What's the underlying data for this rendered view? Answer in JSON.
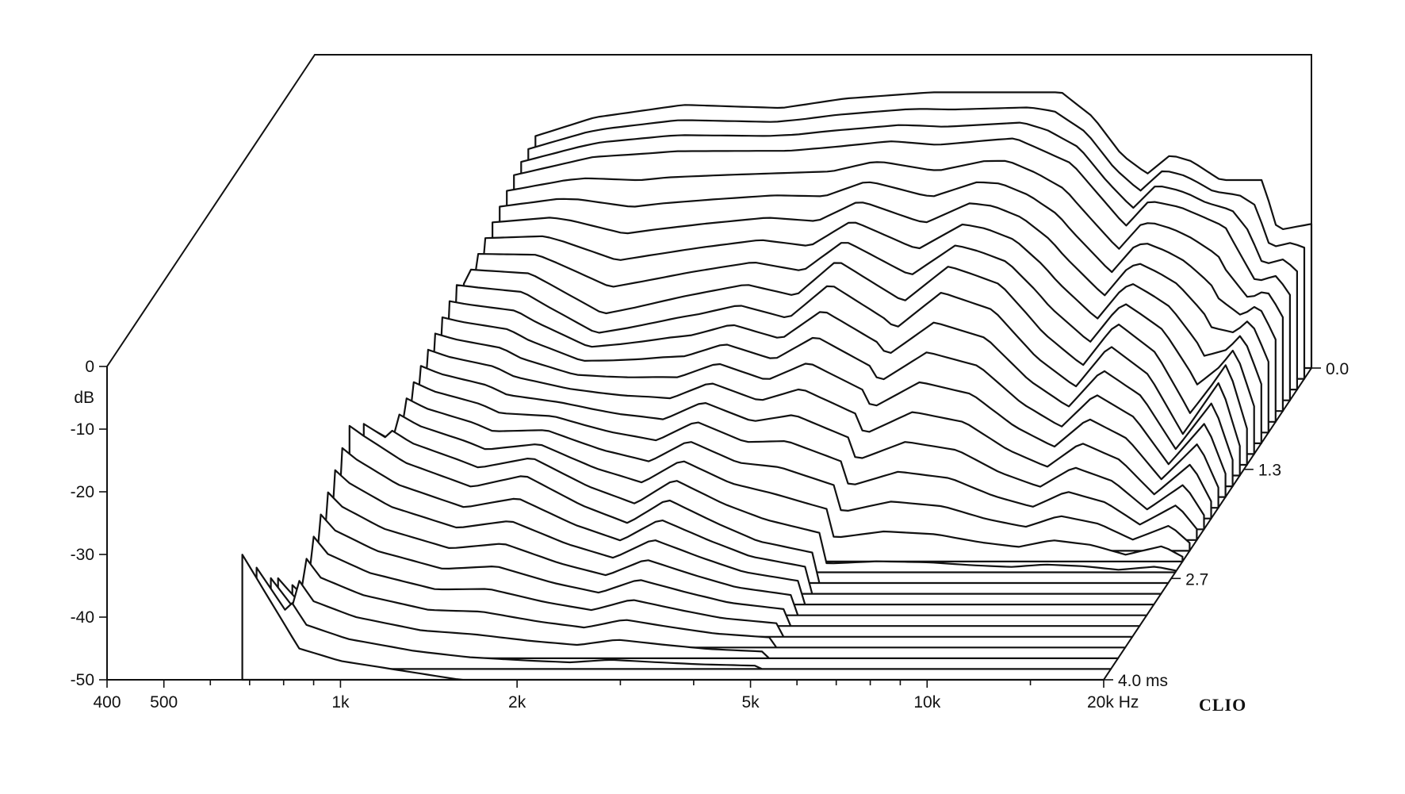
{
  "chart_data": {
    "type": "waterfall",
    "brand": "CLIO",
    "db_axis": {
      "unit_label": "dB",
      "ticks": [
        "0",
        "-10",
        "-20",
        "-30",
        "-40",
        "-50"
      ],
      "range": [
        -50,
        0
      ]
    },
    "freq_axis": {
      "scale": "log",
      "range": [
        400,
        20000
      ],
      "ticks": [
        "400",
        "500",
        "1k",
        "2k",
        "5k",
        "10k",
        "20k Hz"
      ],
      "minor_ticks": [
        600,
        700,
        800,
        900,
        3000,
        4000,
        6000,
        7000,
        8000,
        9000,
        15000
      ]
    },
    "time_axis": {
      "unit": "ms",
      "ticks": [
        "0.0",
        "1.3",
        "2.7",
        "4.0  ms"
      ],
      "range": [
        0.0,
        4.0
      ]
    },
    "slices": 30,
    "series": [
      {
        "time_ms": 0.0,
        "points": [
          [
            950,
            -13
          ],
          [
            1200,
            -10
          ],
          [
            1700,
            -8
          ],
          [
            2500,
            -8.5
          ],
          [
            3200,
            -7
          ],
          [
            4500,
            -6
          ],
          [
            6500,
            -6
          ],
          [
            7500,
            -6
          ],
          [
            8500,
            -10
          ],
          [
            9500,
            -16
          ],
          [
            10500,
            -19
          ],
          [
            11500,
            -16
          ],
          [
            12500,
            -17
          ],
          [
            14000,
            -20
          ],
          [
            16500,
            -20
          ],
          [
            17500,
            -28
          ],
          [
            20000,
            -27
          ]
        ]
      },
      {
        "time_ms": 0.4,
        "points": [
          [
            950,
            -14
          ],
          [
            1300,
            -11
          ],
          [
            1800,
            -10
          ],
          [
            2800,
            -10
          ],
          [
            4200,
            -8.5
          ],
          [
            5000,
            -9
          ],
          [
            6800,
            -8
          ],
          [
            8500,
            -12
          ],
          [
            10500,
            -22
          ],
          [
            11500,
            -18
          ],
          [
            13000,
            -19
          ],
          [
            15500,
            -22
          ],
          [
            17500,
            -31
          ],
          [
            19000,
            -30
          ],
          [
            20000,
            -33
          ]
        ]
      },
      {
        "time_ms": 1.3,
        "points": [
          [
            900,
            -19
          ],
          [
            1200,
            -20
          ],
          [
            1600,
            -27
          ],
          [
            1800,
            -26
          ],
          [
            2200,
            -24
          ],
          [
            2800,
            -22
          ],
          [
            3400,
            -24
          ],
          [
            4000,
            -18
          ],
          [
            5200,
            -25
          ],
          [
            6200,
            -19
          ],
          [
            7600,
            -22
          ],
          [
            9000,
            -30
          ],
          [
            10500,
            -35
          ],
          [
            12000,
            -28
          ],
          [
            14000,
            -33
          ],
          [
            16000,
            -43
          ],
          [
            18500,
            -34
          ],
          [
            20000,
            -45
          ]
        ]
      },
      {
        "time_ms": 2.7,
        "points": [
          [
            800,
            -24
          ],
          [
            1000,
            -30
          ],
          [
            1300,
            -34
          ],
          [
            1600,
            -32
          ],
          [
            2000,
            -37
          ],
          [
            2400,
            -40
          ],
          [
            2800,
            -36
          ],
          [
            3400,
            -40
          ],
          [
            4000,
            -43
          ],
          [
            5000,
            -45
          ]
        ]
      },
      {
        "time_ms": 4.0,
        "points": [
          [
            680,
            -30
          ],
          [
            850,
            -45
          ],
          [
            1000,
            -47
          ],
          [
            1600,
            -50
          ]
        ]
      }
    ]
  }
}
